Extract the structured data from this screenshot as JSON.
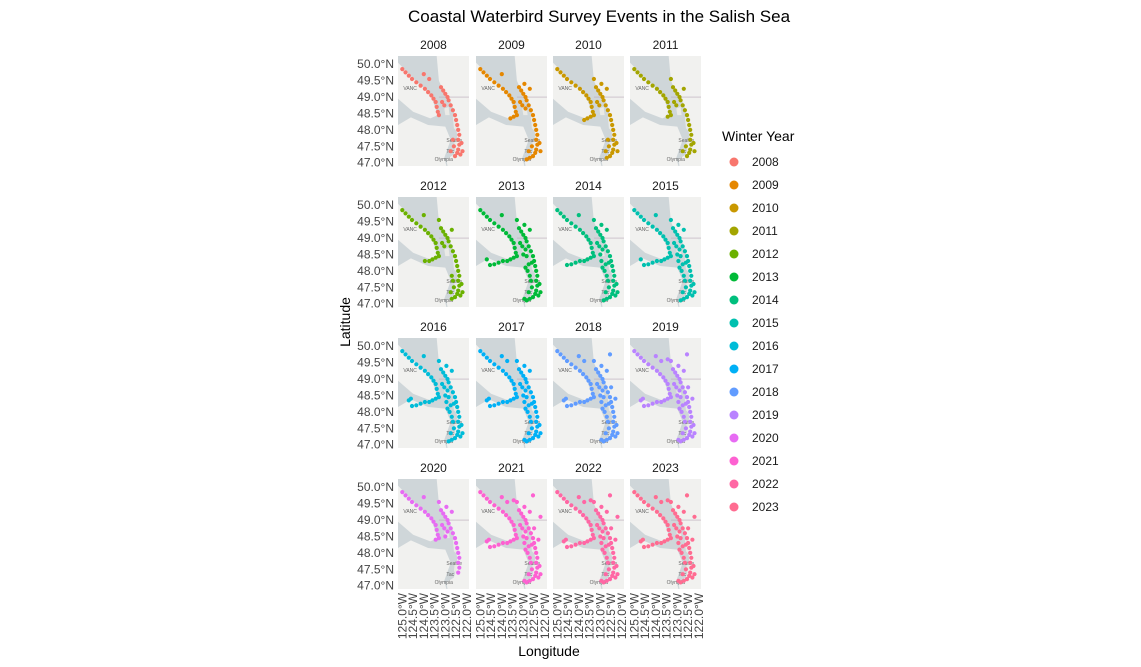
{
  "chart_data": {
    "type": "scatter",
    "title": "Coastal Waterbird Survey Events in the Salish Sea",
    "xlabel": "Longitude",
    "ylabel": "Latitude",
    "facet_by": "Winter Year",
    "facets": [
      "2008",
      "2009",
      "2010",
      "2011",
      "2012",
      "2013",
      "2014",
      "2015",
      "2016",
      "2017",
      "2018",
      "2019",
      "2020",
      "2021",
      "2022",
      "2023"
    ],
    "xlim": [
      -125.2,
      -121.9
    ],
    "ylim": [
      46.9,
      50.25
    ],
    "x_ticks": [
      -125.0,
      -124.5,
      -124.0,
      -123.5,
      -123.0,
      -122.5,
      -122.0
    ],
    "x_tick_labels": [
      "125.0°W",
      "124.5°W",
      "124.0°W",
      "123.5°W",
      "123.0°W",
      "122.5°W",
      "122.0°W"
    ],
    "y_ticks": [
      50.0,
      49.5,
      49.0,
      48.5,
      48.0,
      47.5,
      47.0
    ],
    "y_tick_labels": [
      "50.0°N",
      "49.5°N",
      "49.0°N",
      "48.5°N",
      "48.0°N",
      "47.5°N",
      "47.0°N"
    ],
    "basemap_labels": [
      "VANC",
      "Seattle",
      "Tac",
      "Olympia"
    ],
    "legend": {
      "title": "Winter Year",
      "position": "right",
      "entries": [
        {
          "label": "2008",
          "color": "#F8766D"
        },
        {
          "label": "2009",
          "color": "#E58700"
        },
        {
          "label": "2010",
          "color": "#C99800"
        },
        {
          "label": "2011",
          "color": "#A3A500"
        },
        {
          "label": "2012",
          "color": "#6BB100"
        },
        {
          "label": "2013",
          "color": "#00BA38"
        },
        {
          "label": "2014",
          "color": "#00BF7D"
        },
        {
          "label": "2015",
          "color": "#00C0AF"
        },
        {
          "label": "2016",
          "color": "#00BCD8"
        },
        {
          "label": "2017",
          "color": "#00B0F6"
        },
        {
          "label": "2018",
          "color": "#619CFF"
        },
        {
          "label": "2019",
          "color": "#B983FF"
        },
        {
          "label": "2020",
          "color": "#E76BF3"
        },
        {
          "label": "2021",
          "color": "#FD61D1"
        },
        {
          "label": "2022",
          "color": "#FF67A4"
        },
        {
          "label": "2023",
          "color": "#FF6C91"
        }
      ]
    },
    "grid": false,
    "survey_sites": [
      [
        -125.0,
        49.85
      ],
      [
        -124.85,
        49.75
      ],
      [
        -124.7,
        49.65
      ],
      [
        -124.55,
        49.55
      ],
      [
        -124.35,
        49.45
      ],
      [
        -124.15,
        49.35
      ],
      [
        -123.95,
        49.25
      ],
      [
        -123.8,
        49.15
      ],
      [
        -123.65,
        49.05
      ],
      [
        -123.55,
        48.95
      ],
      [
        -123.45,
        48.85
      ],
      [
        -123.4,
        48.7
      ],
      [
        -123.35,
        48.55
      ],
      [
        -123.3,
        48.45
      ],
      [
        -123.45,
        48.4
      ],
      [
        -123.6,
        48.35
      ],
      [
        -123.75,
        48.3
      ],
      [
        -123.95,
        48.3
      ],
      [
        -124.15,
        48.25
      ],
      [
        -124.35,
        48.2
      ],
      [
        -124.55,
        48.18
      ],
      [
        -124.7,
        48.35
      ],
      [
        -124.6,
        48.4
      ],
      [
        -123.2,
        49.3
      ],
      [
        -123.1,
        49.2
      ],
      [
        -123.0,
        49.1
      ],
      [
        -122.9,
        49.0
      ],
      [
        -122.85,
        48.9
      ],
      [
        -122.75,
        48.75
      ],
      [
        -122.65,
        48.6
      ],
      [
        -122.55,
        48.45
      ],
      [
        -122.5,
        48.3
      ],
      [
        -122.45,
        48.15
      ],
      [
        -122.4,
        48.0
      ],
      [
        -122.35,
        47.85
      ],
      [
        -122.4,
        47.7
      ],
      [
        -122.35,
        47.55
      ],
      [
        -122.4,
        47.4
      ],
      [
        -122.45,
        47.3
      ],
      [
        -122.55,
        47.2
      ],
      [
        -122.7,
        47.15
      ],
      [
        -122.85,
        47.1
      ],
      [
        -122.95,
        47.15
      ],
      [
        -122.75,
        47.35
      ],
      [
        -122.6,
        47.5
      ],
      [
        -122.65,
        47.7
      ],
      [
        -122.7,
        47.85
      ],
      [
        -122.8,
        48.0
      ],
      [
        -122.9,
        48.1
      ],
      [
        -122.75,
        48.2
      ],
      [
        -122.6,
        48.25
      ],
      [
        -122.25,
        47.6
      ],
      [
        -122.2,
        47.35
      ],
      [
        -122.3,
        47.25
      ],
      [
        -123.05,
        48.75
      ],
      [
        -122.9,
        48.65
      ],
      [
        -123.0,
        48.5
      ],
      [
        -122.85,
        48.45
      ],
      [
        -123.15,
        48.85
      ],
      [
        -122.95,
        49.4
      ],
      [
        -123.3,
        49.55
      ],
      [
        -122.55,
        49.75
      ],
      [
        -122.7,
        49.25
      ],
      [
        -123.45,
        49.6
      ],
      [
        -124.0,
        49.7
      ],
      [
        -123.75,
        49.55
      ],
      [
        -122.95,
        48.3
      ],
      [
        -122.5,
        48.75
      ],
      [
        -122.3,
        48.4
      ],
      [
        -122.2,
        49.1
      ]
    ],
    "active_sites_by_year": {
      "2008": [
        0,
        1,
        2,
        3,
        4,
        5,
        6,
        7,
        8,
        9,
        10,
        11,
        12,
        13,
        23,
        24,
        25,
        26,
        27,
        28,
        29,
        30,
        31,
        32,
        33,
        34,
        35,
        36,
        37,
        38,
        39,
        43,
        44,
        45,
        51,
        52,
        53,
        54,
        58,
        64,
        65
      ],
      "2009": [
        0,
        1,
        2,
        3,
        4,
        5,
        6,
        7,
        8,
        9,
        10,
        11,
        12,
        13,
        14,
        15,
        23,
        24,
        25,
        26,
        27,
        28,
        29,
        30,
        31,
        32,
        33,
        34,
        35,
        36,
        37,
        38,
        39,
        40,
        41,
        43,
        44,
        51,
        52,
        54,
        55,
        58,
        59,
        62,
        64
      ],
      "2010": [
        0,
        1,
        2,
        3,
        4,
        5,
        6,
        7,
        8,
        9,
        10,
        11,
        12,
        13,
        14,
        15,
        16,
        23,
        24,
        25,
        26,
        27,
        28,
        29,
        30,
        31,
        32,
        33,
        34,
        35,
        36,
        37,
        38,
        39,
        40,
        43,
        44,
        45,
        51,
        52,
        54,
        58,
        59,
        60,
        62
      ],
      "2011": [
        0,
        1,
        2,
        3,
        4,
        5,
        6,
        7,
        8,
        9,
        10,
        11,
        12,
        13,
        14,
        23,
        24,
        25,
        26,
        27,
        28,
        29,
        30,
        31,
        32,
        33,
        34,
        35,
        36,
        37,
        38,
        39,
        43,
        44,
        51,
        52,
        54,
        58,
        60,
        62
      ],
      "2012": [
        0,
        1,
        2,
        3,
        4,
        5,
        6,
        7,
        8,
        9,
        10,
        11,
        12,
        13,
        14,
        15,
        16,
        17,
        23,
        24,
        25,
        26,
        27,
        28,
        29,
        30,
        31,
        32,
        33,
        34,
        35,
        36,
        37,
        38,
        39,
        40,
        43,
        44,
        45,
        46,
        51,
        52,
        53,
        54,
        58,
        60,
        62,
        64
      ],
      "2013": [
        0,
        1,
        2,
        3,
        4,
        5,
        6,
        7,
        8,
        9,
        10,
        11,
        12,
        13,
        14,
        15,
        16,
        17,
        18,
        19,
        20,
        21,
        23,
        24,
        25,
        26,
        27,
        28,
        29,
        30,
        31,
        32,
        33,
        34,
        35,
        36,
        37,
        38,
        39,
        40,
        41,
        42,
        43,
        44,
        45,
        46,
        47,
        48,
        49,
        50,
        51,
        52,
        53,
        54,
        55,
        56,
        57,
        58,
        59,
        60,
        62,
        64
      ],
      "2014": [
        0,
        1,
        2,
        3,
        4,
        5,
        6,
        7,
        8,
        9,
        10,
        11,
        12,
        13,
        14,
        15,
        16,
        17,
        18,
        19,
        20,
        23,
        24,
        25,
        26,
        27,
        28,
        29,
        30,
        31,
        32,
        33,
        34,
        35,
        36,
        37,
        38,
        39,
        40,
        41,
        43,
        44,
        45,
        46,
        47,
        48,
        49,
        50,
        51,
        52,
        53,
        54,
        55,
        56,
        58,
        59,
        60,
        62,
        64,
        66
      ],
      "2015": [
        0,
        1,
        2,
        3,
        4,
        5,
        6,
        7,
        8,
        9,
        10,
        11,
        12,
        13,
        14,
        15,
        16,
        17,
        18,
        19,
        20,
        21,
        23,
        24,
        25,
        26,
        27,
        28,
        29,
        30,
        31,
        32,
        33,
        34,
        35,
        36,
        37,
        38,
        39,
        40,
        41,
        43,
        44,
        45,
        46,
        47,
        48,
        49,
        50,
        51,
        52,
        53,
        54,
        55,
        56,
        57,
        58,
        59,
        60,
        62,
        64,
        66
      ],
      "2016": [
        0,
        1,
        2,
        3,
        4,
        5,
        6,
        7,
        8,
        9,
        10,
        11,
        12,
        13,
        14,
        15,
        16,
        17,
        18,
        19,
        20,
        21,
        22,
        23,
        24,
        25,
        26,
        27,
        28,
        29,
        30,
        31,
        32,
        33,
        34,
        35,
        36,
        37,
        38,
        39,
        40,
        41,
        43,
        44,
        45,
        46,
        47,
        48,
        49,
        50,
        51,
        52,
        53,
        54,
        55,
        56,
        57,
        58,
        59,
        60,
        62,
        64,
        66
      ],
      "2017": [
        0,
        1,
        2,
        3,
        4,
        5,
        6,
        7,
        8,
        9,
        10,
        11,
        12,
        13,
        14,
        15,
        16,
        17,
        18,
        19,
        20,
        21,
        22,
        23,
        24,
        25,
        26,
        27,
        28,
        29,
        30,
        31,
        32,
        33,
        34,
        35,
        36,
        37,
        38,
        39,
        40,
        41,
        42,
        43,
        44,
        45,
        46,
        47,
        48,
        49,
        50,
        51,
        52,
        53,
        54,
        55,
        56,
        57,
        58,
        59,
        60,
        62,
        64,
        65,
        66
      ],
      "2018": [
        0,
        1,
        2,
        3,
        4,
        5,
        6,
        7,
        8,
        9,
        10,
        11,
        12,
        13,
        14,
        15,
        16,
        17,
        18,
        19,
        20,
        21,
        22,
        23,
        24,
        25,
        26,
        27,
        28,
        29,
        30,
        31,
        32,
        33,
        34,
        35,
        36,
        37,
        38,
        39,
        40,
        41,
        42,
        43,
        44,
        45,
        46,
        47,
        48,
        49,
        50,
        51,
        52,
        53,
        54,
        55,
        56,
        57,
        58,
        59,
        60,
        61,
        62,
        64,
        65,
        66,
        67,
        68
      ],
      "2019": [
        0,
        1,
        2,
        3,
        4,
        5,
        6,
        7,
        8,
        9,
        10,
        11,
        12,
        13,
        14,
        15,
        16,
        17,
        18,
        19,
        20,
        21,
        22,
        23,
        24,
        25,
        26,
        27,
        28,
        29,
        30,
        31,
        32,
        33,
        34,
        35,
        36,
        37,
        38,
        39,
        40,
        41,
        42,
        43,
        44,
        45,
        46,
        47,
        48,
        49,
        50,
        51,
        52,
        53,
        54,
        55,
        56,
        57,
        58,
        59,
        60,
        61,
        62,
        63,
        64,
        65,
        66,
        67,
        68
      ],
      "2020": [
        0,
        1,
        2,
        3,
        4,
        5,
        6,
        7,
        8,
        9,
        10,
        11,
        12,
        13,
        14,
        23,
        24,
        25,
        26,
        27,
        28,
        29,
        30,
        31,
        32,
        33,
        34,
        35,
        36,
        37,
        54,
        55,
        56,
        58,
        59,
        60,
        62,
        64
      ],
      "2021": [
        0,
        1,
        2,
        3,
        4,
        5,
        6,
        7,
        8,
        9,
        10,
        11,
        12,
        13,
        14,
        15,
        16,
        17,
        18,
        19,
        20,
        21,
        22,
        23,
        24,
        25,
        26,
        27,
        28,
        29,
        30,
        31,
        32,
        33,
        34,
        35,
        36,
        37,
        38,
        39,
        40,
        41,
        42,
        43,
        44,
        45,
        46,
        47,
        48,
        49,
        50,
        51,
        52,
        53,
        54,
        55,
        56,
        57,
        58,
        59,
        60,
        61,
        62,
        63,
        64,
        65,
        66,
        67,
        68,
        69
      ],
      "2022": [
        0,
        1,
        2,
        3,
        4,
        5,
        6,
        7,
        8,
        9,
        10,
        11,
        12,
        13,
        14,
        15,
        16,
        17,
        18,
        19,
        20,
        21,
        22,
        23,
        24,
        25,
        26,
        27,
        28,
        29,
        30,
        31,
        32,
        33,
        34,
        35,
        36,
        37,
        38,
        39,
        40,
        41,
        42,
        43,
        44,
        45,
        46,
        47,
        48,
        49,
        50,
        51,
        52,
        53,
        54,
        55,
        56,
        57,
        58,
        59,
        60,
        61,
        62,
        63,
        64,
        65,
        66,
        67,
        68,
        69
      ],
      "2023": [
        0,
        1,
        2,
        3,
        4,
        5,
        6,
        7,
        8,
        9,
        10,
        11,
        12,
        13,
        14,
        15,
        16,
        17,
        18,
        19,
        20,
        21,
        22,
        23,
        24,
        25,
        26,
        27,
        28,
        29,
        30,
        31,
        32,
        33,
        34,
        35,
        36,
        37,
        38,
        39,
        40,
        41,
        42,
        43,
        44,
        45,
        46,
        47,
        48,
        49,
        50,
        51,
        52,
        53,
        54,
        55,
        56,
        57,
        58,
        59,
        60,
        61,
        62,
        63,
        64,
        65,
        66,
        67,
        68,
        69
      ]
    }
  }
}
